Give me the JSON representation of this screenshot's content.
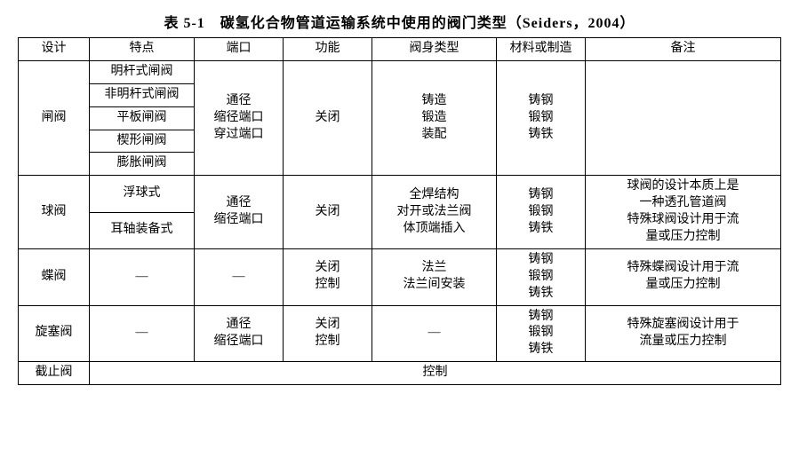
{
  "title": "表 5-1　碳氢化合物管道运输系统中使用的阀门类型（Seiders，2004）",
  "headers": {
    "h1": "设计",
    "h2": "特点",
    "h3": "端口",
    "h4": "功能",
    "h5": "阀身类型",
    "h6": "材料或制造",
    "h7": "备注"
  },
  "gate": {
    "design": "闸阀",
    "features": [
      "明杆式闸阀",
      "非明杆式闸阀",
      "平板闸阀",
      "楔形闸阀",
      "膨胀闸阀"
    ],
    "port": "通径\n缩径端口\n穿过端口",
    "function": "关闭",
    "body": "铸造\n锻造\n装配",
    "material": "铸钢\n锻钢\n铸铁",
    "remarks": ""
  },
  "ball": {
    "design": "球阀",
    "features": [
      "浮球式",
      "耳轴装备式"
    ],
    "port": "通径\n缩径端口",
    "function": "关闭",
    "body": "全焊结构\n对开或法兰阀\n体顶端插入",
    "material": "铸钢\n锻钢\n铸铁",
    "remarks": "球阀的设计本质上是\n一种透孔管道阀\n特殊球阀设计用于流\n量或压力控制"
  },
  "butterfly": {
    "design": "蝶阀",
    "feature": "—",
    "port": "—",
    "function": "关闭\n控制",
    "body": "法兰\n法兰间安装",
    "material": "铸钢\n锻钢\n铸铁",
    "remarks": "特殊蝶阀设计用于流\n量或压力控制"
  },
  "plug": {
    "design": "旋塞阀",
    "feature": "—",
    "port": "通径\n缩径端口",
    "function": "关闭\n控制",
    "body": "—",
    "material": "铸钢\n锻钢\n铸铁",
    "remarks": "特殊旋塞阀设计用于\n流量或压力控制"
  },
  "globe": {
    "design": "截止阀",
    "merged": "控制"
  }
}
